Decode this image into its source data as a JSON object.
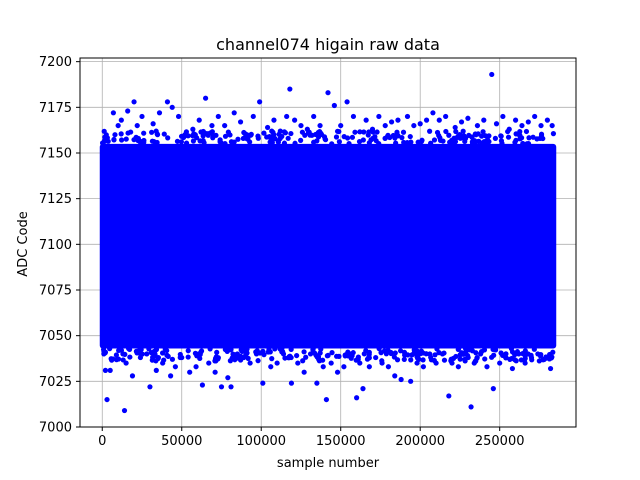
{
  "chart_data": {
    "type": "scatter",
    "title": "channel074 higain raw data",
    "xlabel": "sample number",
    "ylabel": "ADC Code",
    "xlim": [
      -14000,
      298000
    ],
    "ylim": [
      7000,
      7202
    ],
    "xticks": [
      0,
      50000,
      100000,
      150000,
      200000,
      250000
    ],
    "xtick_labels": [
      "0",
      "50000",
      "100000",
      "150000",
      "200000",
      "250000"
    ],
    "yticks": [
      7000,
      7025,
      7050,
      7075,
      7100,
      7125,
      7150,
      7175,
      7200
    ],
    "ytick_labels": [
      "7000",
      "7025",
      "7050",
      "7075",
      "7100",
      "7125",
      "7150",
      "7175",
      "7200"
    ],
    "grid": true,
    "marker_color": "#0000ff",
    "series": [
      {
        "n_samples": 284000,
        "dense_band": [
          7043,
          7155
        ],
        "points": [
          [
            1000,
            7040
          ],
          [
            2000,
            7031
          ],
          [
            3000,
            7015
          ],
          [
            5000,
            7031
          ],
          [
            6000,
            7048
          ],
          [
            7000,
            7172
          ],
          [
            8000,
            7160
          ],
          [
            10000,
            7165
          ],
          [
            12000,
            7168
          ],
          [
            13000,
            7040
          ],
          [
            14000,
            7009
          ],
          [
            15000,
            7035
          ],
          [
            16000,
            7173
          ],
          [
            17000,
            7045
          ],
          [
            19000,
            7028
          ],
          [
            20000,
            7178
          ],
          [
            22000,
            7165
          ],
          [
            24000,
            7038
          ],
          [
            25000,
            7170
          ],
          [
            28000,
            7040
          ],
          [
            30000,
            7022
          ],
          [
            32000,
            7166
          ],
          [
            34000,
            7031
          ],
          [
            36000,
            7172
          ],
          [
            38000,
            7035
          ],
          [
            41000,
            7178
          ],
          [
            43000,
            7028
          ],
          [
            44000,
            7175
          ],
          [
            46000,
            7033
          ],
          [
            48000,
            7170
          ],
          [
            50000,
            7038
          ],
          [
            52000,
            7160
          ],
          [
            55000,
            7030
          ],
          [
            57000,
            7163
          ],
          [
            59000,
            7033
          ],
          [
            61000,
            7168
          ],
          [
            63000,
            7023
          ],
          [
            65000,
            7180
          ],
          [
            67000,
            7035
          ],
          [
            69000,
            7165
          ],
          [
            71000,
            7030
          ],
          [
            73000,
            7170
          ],
          [
            75000,
            7022
          ],
          [
            77000,
            7165
          ],
          [
            79000,
            7027
          ],
          [
            81000,
            7022
          ],
          [
            83000,
            7172
          ],
          [
            85000,
            7040
          ],
          [
            87000,
            7167
          ],
          [
            89000,
            7038
          ],
          [
            91000,
            7160
          ],
          [
            93000,
            7035
          ],
          [
            95000,
            7170
          ],
          [
            97000,
            7040
          ],
          [
            99000,
            7178
          ],
          [
            101000,
            7024
          ],
          [
            104000,
            7164
          ],
          [
            106000,
            7033
          ],
          [
            108000,
            7168
          ],
          [
            110000,
            7035
          ],
          [
            112000,
            7162
          ],
          [
            114000,
            7040
          ],
          [
            116000,
            7170
          ],
          [
            118000,
            7185
          ],
          [
            119000,
            7024
          ],
          [
            121000,
            7168
          ],
          [
            123000,
            7035
          ],
          [
            125000,
            7165
          ],
          [
            127000,
            7030
          ],
          [
            129000,
            7163
          ],
          [
            131000,
            7040
          ],
          [
            133000,
            7170
          ],
          [
            135000,
            7024
          ],
          [
            137000,
            7165
          ],
          [
            139000,
            7033
          ],
          [
            141000,
            7015
          ],
          [
            142000,
            7183
          ],
          [
            144000,
            7035
          ],
          [
            146000,
            7176
          ],
          [
            148000,
            7030
          ],
          [
            150000,
            7165
          ],
          [
            152000,
            7033
          ],
          [
            154000,
            7178
          ],
          [
            156000,
            7040
          ],
          [
            158000,
            7170
          ],
          [
            160000,
            7016
          ],
          [
            162000,
            7035
          ],
          [
            164000,
            7021
          ],
          [
            166000,
            7168
          ],
          [
            168000,
            7033
          ],
          [
            170000,
            7163
          ],
          [
            172000,
            7038
          ],
          [
            174000,
            7170
          ],
          [
            176000,
            7035
          ],
          [
            178000,
            7165
          ],
          [
            180000,
            7033
          ],
          [
            182000,
            7167
          ],
          [
            184000,
            7028
          ],
          [
            186000,
            7168
          ],
          [
            188000,
            7026
          ],
          [
            190000,
            7037
          ],
          [
            192000,
            7170
          ],
          [
            194000,
            7025
          ],
          [
            196000,
            7165
          ],
          [
            198000,
            7035
          ],
          [
            200000,
            7166
          ],
          [
            202000,
            7033
          ],
          [
            204000,
            7168
          ],
          [
            206000,
            7040
          ],
          [
            208000,
            7172
          ],
          [
            210000,
            7035
          ],
          [
            212000,
            7168
          ],
          [
            214000,
            7040
          ],
          [
            216000,
            7170
          ],
          [
            218000,
            7017
          ],
          [
            220000,
            7035
          ],
          [
            222000,
            7164
          ],
          [
            224000,
            7033
          ],
          [
            226000,
            7167
          ],
          [
            228000,
            7037
          ],
          [
            230000,
            7169
          ],
          [
            232000,
            7011
          ],
          [
            234000,
            7035
          ],
          [
            236000,
            7165
          ],
          [
            238000,
            7040
          ],
          [
            240000,
            7168
          ],
          [
            242000,
            7033
          ],
          [
            245000,
            7193
          ],
          [
            246000,
            7021
          ],
          [
            248000,
            7166
          ],
          [
            250000,
            7035
          ],
          [
            252000,
            7170
          ],
          [
            254000,
            7038
          ],
          [
            256000,
            7163
          ],
          [
            258000,
            7032
          ],
          [
            260000,
            7168
          ],
          [
            262000,
            7040
          ],
          [
            264000,
            7165
          ],
          [
            266000,
            7035
          ],
          [
            268000,
            7167
          ],
          [
            270000,
            7038
          ],
          [
            272000,
            7170
          ],
          [
            274000,
            7040
          ],
          [
            276000,
            7165
          ],
          [
            278000,
            7037
          ],
          [
            280000,
            7168
          ],
          [
            282000,
            7032
          ],
          [
            283000,
            7165
          ]
        ]
      }
    ]
  }
}
